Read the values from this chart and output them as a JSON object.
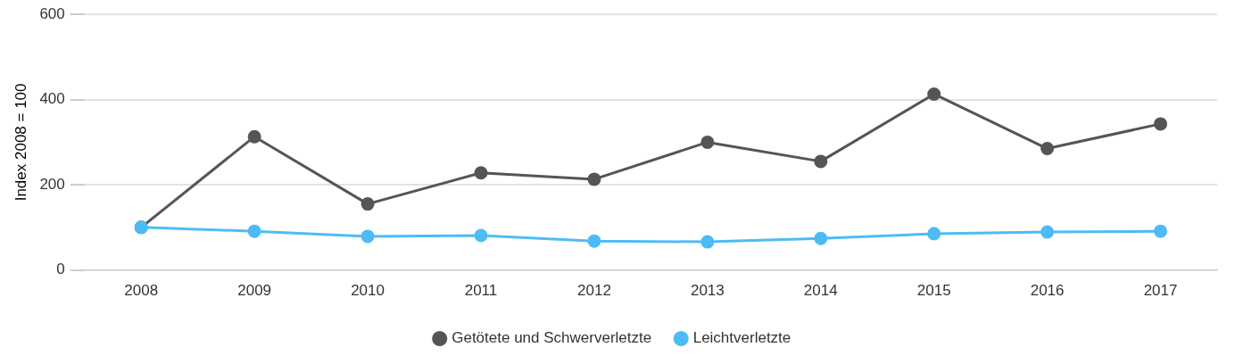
{
  "chart_data": {
    "type": "line",
    "ylabel": "Index 2008 = 100",
    "categories": [
      "2008",
      "2009",
      "2010",
      "2011",
      "2012",
      "2013",
      "2014",
      "2015",
      "2016",
      "2017"
    ],
    "series": [
      {
        "name": "Getötete und Schwerverletzte",
        "color": "#555555",
        "values": [
          100,
          313,
          155,
          228,
          213,
          300,
          255,
          413,
          285,
          343
        ]
      },
      {
        "name": "Leichtverletzte",
        "color": "#4dbcf5",
        "values": [
          100,
          91,
          79,
          81,
          68,
          66,
          74,
          85,
          89,
          91
        ]
      }
    ],
    "ylim": [
      0,
      600
    ],
    "yticks": [
      0,
      200,
      400,
      600
    ],
    "grid": "y",
    "legend": "bottom",
    "marker": "circle",
    "line_style": "solid"
  }
}
